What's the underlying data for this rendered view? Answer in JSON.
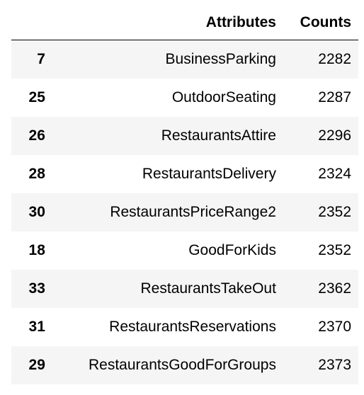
{
  "table": {
    "columns": [
      "",
      "Attributes",
      "Counts"
    ],
    "rows": [
      {
        "index": "7",
        "attribute": "BusinessParking",
        "count": "2282"
      },
      {
        "index": "25",
        "attribute": "OutdoorSeating",
        "count": "2287"
      },
      {
        "index": "26",
        "attribute": "RestaurantsAttire",
        "count": "2296"
      },
      {
        "index": "28",
        "attribute": "RestaurantsDelivery",
        "count": "2324"
      },
      {
        "index": "30",
        "attribute": "RestaurantsPriceRange2",
        "count": "2352"
      },
      {
        "index": "18",
        "attribute": "GoodForKids",
        "count": "2352"
      },
      {
        "index": "33",
        "attribute": "RestaurantsTakeOut",
        "count": "2362"
      },
      {
        "index": "31",
        "attribute": "RestaurantsReservations",
        "count": "2370"
      },
      {
        "index": "29",
        "attribute": "RestaurantsGoodForGroups",
        "count": "2373"
      }
    ]
  }
}
